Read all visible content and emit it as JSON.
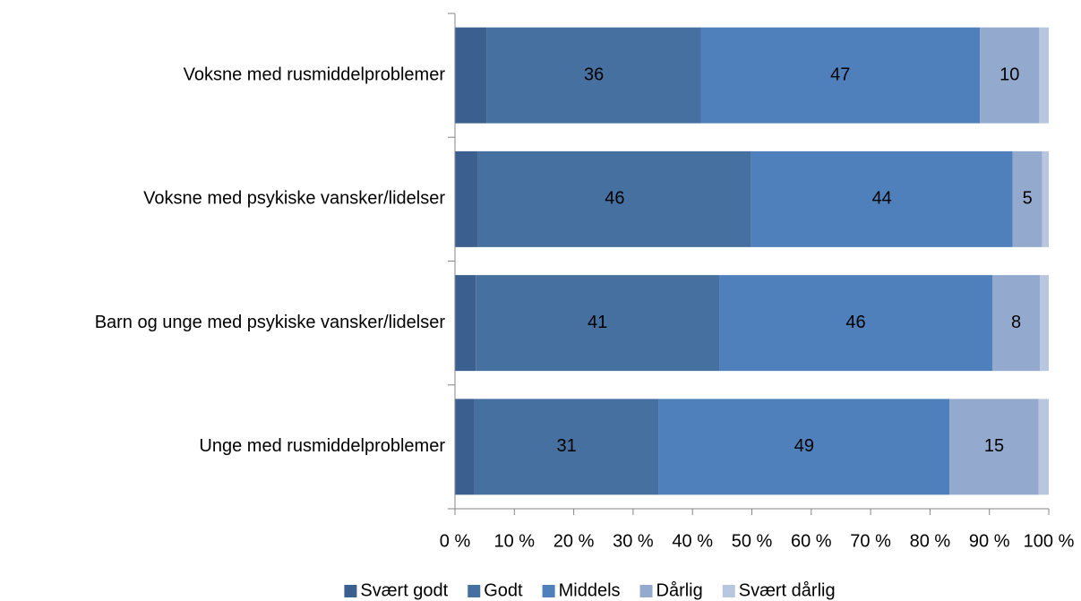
{
  "chart_data": {
    "type": "stacked_barh",
    "categories": [
      "Voksne med rusmiddelproblemer",
      "Voksne med psykiske vansker/lidelser",
      "Barn og unge med psykiske vansker/lidelser",
      "Unge med rusmiddelproblemer"
    ],
    "series": [
      {
        "name": "Svært godt",
        "color": "#3b5f8e",
        "values": [
          5.4,
          3.9,
          3.5,
          3.3
        ],
        "data_labels": false
      },
      {
        "name": "Godt",
        "color": "#4670a0",
        "values": [
          36,
          46,
          41,
          31
        ],
        "data_labels": true
      },
      {
        "name": "Middels",
        "color": "#4f80bb",
        "values": [
          47,
          44,
          46,
          49
        ],
        "data_labels": true
      },
      {
        "name": "Dårlig",
        "color": "#93a9cd",
        "values": [
          10,
          5,
          8,
          15
        ],
        "data_labels": true
      },
      {
        "name": "Svært dårlig",
        "color": "#b9c6e0",
        "values": [
          1.6,
          1.1,
          1.5,
          1.7
        ],
        "data_labels": false
      }
    ],
    "xlim": [
      0,
      100
    ],
    "xticks": [
      {
        "value": 0,
        "label": "0 %"
      },
      {
        "value": 10,
        "label": "10 %"
      },
      {
        "value": 20,
        "label": "20 %"
      },
      {
        "value": 30,
        "label": "30 %"
      },
      {
        "value": 40,
        "label": "40 %"
      },
      {
        "value": 50,
        "label": "50 %"
      },
      {
        "value": 60,
        "label": "60 %"
      },
      {
        "value": 70,
        "label": "70 %"
      },
      {
        "value": 80,
        "label": "80 %"
      },
      {
        "value": 90,
        "label": "90 %"
      },
      {
        "value": 100,
        "label": "100 %"
      }
    ],
    "legend": "bottom"
  }
}
